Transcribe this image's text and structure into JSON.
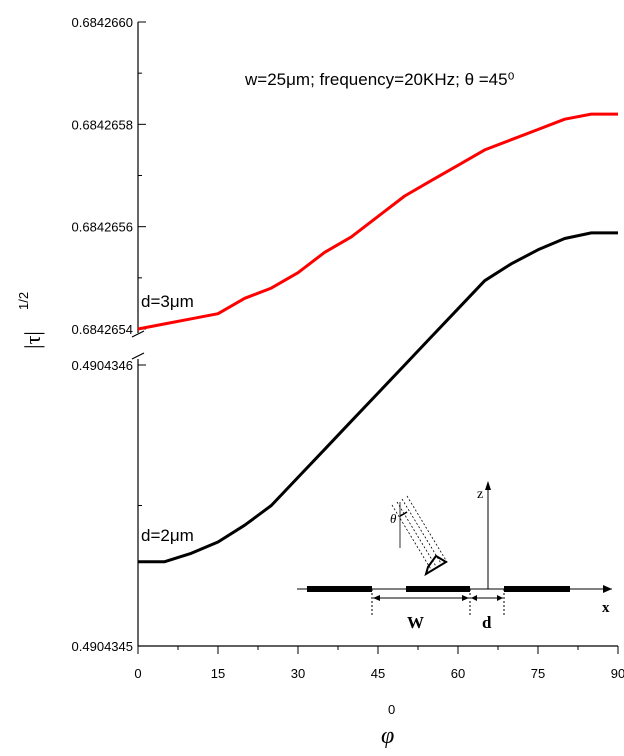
{
  "chart_data": {
    "type": "line",
    "title": "",
    "annotation": "w=25μm;   frequency=20KHz;   θ =45⁰",
    "xlabel": "φ⁰",
    "ylabel": "|τ|¹ᐟ²",
    "ylabel_main": "|τ|",
    "ylabel_exp": "1/2",
    "xlabel_symbol": "φ",
    "xlabel_sup": "0",
    "xlim": [
      0,
      90
    ],
    "x_ticks": [
      0,
      15,
      30,
      45,
      60,
      75,
      90
    ],
    "x_tick_labels": [
      "0",
      "15",
      "30",
      "45",
      "60",
      "75",
      "90"
    ],
    "y_axis_break": true,
    "upper_panel": {
      "ylim": [
        0.6842654,
        0.684266
      ],
      "y_ticks": [
        0.6842654,
        0.6842656,
        0.6842658,
        0.684266
      ],
      "y_tick_labels": [
        "0.6842654",
        "0.6842656",
        "0.6842658",
        "0.6842660"
      ]
    },
    "lower_panel": {
      "ylim": [
        0.4904345,
        0.4904346
      ],
      "y_ticks": [
        0.4904345,
        0.4904346
      ],
      "y_tick_labels": [
        "0.4904345",
        "0.4904346"
      ]
    },
    "series": [
      {
        "name": "d=3μm",
        "color": "#ff0000",
        "panel": "upper",
        "x": [
          0,
          5,
          10,
          15,
          20,
          25,
          30,
          35,
          40,
          45,
          50,
          55,
          60,
          65,
          70,
          75,
          80,
          85,
          90
        ],
        "y": [
          0.6842654,
          0.68426541,
          0.68426542,
          0.68426543,
          0.68426546,
          0.68426548,
          0.68426551,
          0.68426555,
          0.68426558,
          0.68426562,
          0.68426566,
          0.68426569,
          0.68426572,
          0.68426575,
          0.68426577,
          0.68426579,
          0.68426581,
          0.68426582,
          0.68426582
        ]
      },
      {
        "name": "d=2μm",
        "color": "#000000",
        "panel": "lower",
        "x": [
          0,
          5,
          10,
          15,
          20,
          25,
          30,
          35,
          40,
          45,
          50,
          55,
          60,
          65,
          70,
          75,
          80,
          85,
          90
        ],
        "y": [
          0.49043453,
          0.49043453,
          0.490434533,
          0.490434537,
          0.490434543,
          0.49043455,
          0.49043456,
          0.49043457,
          0.49043458,
          0.49043459,
          0.4904346,
          0.49043461,
          0.49043462,
          0.49043463,
          0.490434636,
          0.490434641,
          0.490434645,
          0.490434647,
          0.490434647
        ]
      }
    ],
    "inset_labels": {
      "z": "z",
      "x": "x",
      "W": "W",
      "d": "d",
      "theta": "θ"
    }
  }
}
